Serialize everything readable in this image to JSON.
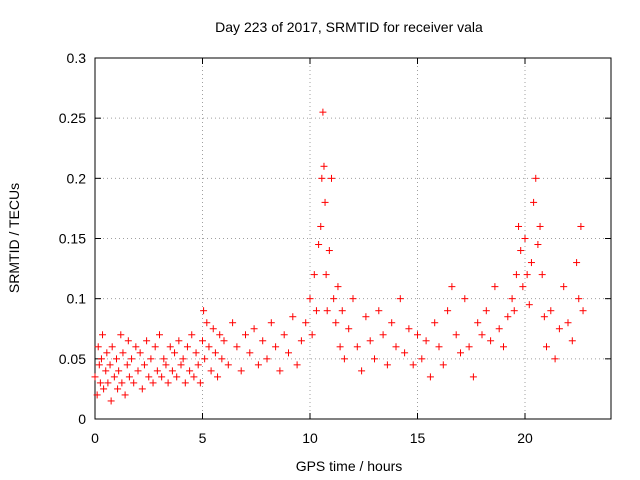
{
  "chart_data": {
    "type": "scatter",
    "title": "Day 223 of 2017, SRMTID for receiver vala",
    "xlabel": "GPS time / hours",
    "ylabel": "SRMTID / TECUs",
    "xlim": [
      0,
      24
    ],
    "ylim": [
      0,
      0.3
    ],
    "xticks": [
      0,
      5,
      10,
      15,
      20
    ],
    "xtick_labels": [
      "0",
      "5",
      "10",
      "15",
      "20"
    ],
    "yticks": [
      0,
      0.05,
      0.1,
      0.15,
      0.2,
      0.25,
      0.3
    ],
    "ytick_labels": [
      "0",
      "0.05",
      "0.1",
      "0.15",
      "0.2",
      "0.25",
      "0.3"
    ],
    "grid": true,
    "marker": "plus",
    "color": "#ff0000",
    "series": [
      {
        "name": "SRMTID",
        "x": [
          0.0,
          0.1,
          0.15,
          0.2,
          0.25,
          0.3,
          0.35,
          0.4,
          0.5,
          0.55,
          0.6,
          0.7,
          0.75,
          0.8,
          0.9,
          1.0,
          1.05,
          1.1,
          1.2,
          1.25,
          1.3,
          1.4,
          1.5,
          1.55,
          1.6,
          1.7,
          1.8,
          1.9,
          2.0,
          2.1,
          2.2,
          2.3,
          2.4,
          2.5,
          2.6,
          2.7,
          2.8,
          2.9,
          3.0,
          3.1,
          3.2,
          3.3,
          3.4,
          3.5,
          3.6,
          3.7,
          3.8,
          3.9,
          4.0,
          4.1,
          4.2,
          4.3,
          4.4,
          4.5,
          4.6,
          4.7,
          4.8,
          4.9,
          5.0,
          5.05,
          5.1,
          5.2,
          5.3,
          5.4,
          5.5,
          5.6,
          5.7,
          5.8,
          5.9,
          6.0,
          6.2,
          6.4,
          6.6,
          6.8,
          7.0,
          7.2,
          7.4,
          7.6,
          7.8,
          8.0,
          8.2,
          8.4,
          8.6,
          8.8,
          9.0,
          9.2,
          9.4,
          9.6,
          9.8,
          10.0,
          10.1,
          10.2,
          10.3,
          10.4,
          10.5,
          10.55,
          10.6,
          10.65,
          10.7,
          10.75,
          10.8,
          10.9,
          11.0,
          11.1,
          11.2,
          11.3,
          11.4,
          11.5,
          11.6,
          11.8,
          12.0,
          12.2,
          12.4,
          12.6,
          12.8,
          13.0,
          13.2,
          13.4,
          13.6,
          13.8,
          14.0,
          14.2,
          14.4,
          14.6,
          14.8,
          15.0,
          15.2,
          15.4,
          15.6,
          15.8,
          16.0,
          16.2,
          16.4,
          16.6,
          16.8,
          17.0,
          17.2,
          17.4,
          17.6,
          17.8,
          18.0,
          18.2,
          18.4,
          18.6,
          18.8,
          19.0,
          19.2,
          19.4,
          19.5,
          19.6,
          19.7,
          19.8,
          19.9,
          20.0,
          20.1,
          20.2,
          20.3,
          20.4,
          20.5,
          20.6,
          20.7,
          20.8,
          20.9,
          21.0,
          21.2,
          21.4,
          21.6,
          21.8,
          22.0,
          22.2,
          22.4,
          22.5,
          22.6,
          22.7
        ],
        "y": [
          0.035,
          0.02,
          0.06,
          0.045,
          0.03,
          0.05,
          0.07,
          0.025,
          0.04,
          0.055,
          0.03,
          0.045,
          0.015,
          0.06,
          0.035,
          0.05,
          0.025,
          0.04,
          0.07,
          0.03,
          0.055,
          0.02,
          0.045,
          0.065,
          0.035,
          0.05,
          0.03,
          0.06,
          0.04,
          0.055,
          0.025,
          0.045,
          0.065,
          0.035,
          0.05,
          0.03,
          0.06,
          0.04,
          0.07,
          0.035,
          0.05,
          0.045,
          0.03,
          0.06,
          0.04,
          0.055,
          0.035,
          0.065,
          0.045,
          0.05,
          0.03,
          0.06,
          0.04,
          0.07,
          0.035,
          0.055,
          0.045,
          0.03,
          0.065,
          0.09,
          0.05,
          0.08,
          0.06,
          0.04,
          0.075,
          0.055,
          0.035,
          0.07,
          0.05,
          0.065,
          0.045,
          0.08,
          0.06,
          0.04,
          0.07,
          0.055,
          0.075,
          0.045,
          0.065,
          0.05,
          0.08,
          0.06,
          0.04,
          0.07,
          0.055,
          0.085,
          0.045,
          0.065,
          0.08,
          0.1,
          0.07,
          0.12,
          0.09,
          0.145,
          0.16,
          0.2,
          0.255,
          0.21,
          0.18,
          0.12,
          0.09,
          0.14,
          0.2,
          0.1,
          0.08,
          0.11,
          0.06,
          0.09,
          0.05,
          0.075,
          0.1,
          0.06,
          0.04,
          0.085,
          0.065,
          0.05,
          0.09,
          0.07,
          0.045,
          0.08,
          0.06,
          0.1,
          0.055,
          0.075,
          0.045,
          0.07,
          0.05,
          0.065,
          0.035,
          0.08,
          0.06,
          0.045,
          0.09,
          0.11,
          0.07,
          0.055,
          0.1,
          0.06,
          0.035,
          0.08,
          0.07,
          0.09,
          0.065,
          0.11,
          0.075,
          0.06,
          0.085,
          0.1,
          0.09,
          0.12,
          0.16,
          0.14,
          0.11,
          0.15,
          0.12,
          0.095,
          0.13,
          0.18,
          0.2,
          0.145,
          0.16,
          0.12,
          0.085,
          0.06,
          0.09,
          0.05,
          0.075,
          0.11,
          0.08,
          0.065,
          0.13,
          0.1,
          0.16,
          0.09
        ]
      }
    ]
  }
}
